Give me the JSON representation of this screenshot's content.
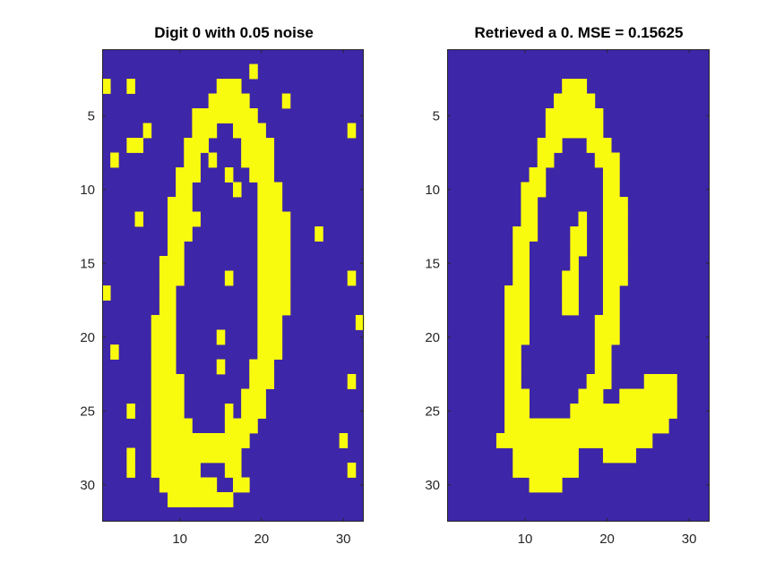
{
  "chart_data": [
    {
      "type": "heatmap",
      "title": "Digit 0 with 0.05 noise",
      "xlim": [
        0.5,
        32.5
      ],
      "ylim": [
        0.5,
        32.5
      ],
      "y_reversed": true,
      "xticks": [
        10,
        20,
        30
      ],
      "yticks": [
        5,
        10,
        15,
        20,
        25,
        30
      ],
      "colors": {
        "off": "#3e26a8",
        "on": "#f9fb0e",
        "axis": "#262626"
      },
      "values_note": "rows top to bottom, columns 1..32",
      "values": [
        "00000000000000000000000000000000",
        "00000000000000000010000000000000",
        "10010000000000111000000000000000",
        "00000000000001111100001000000000",
        "00000000000111111110000000000000",
        "00000100000111001111000000000010",
        "00011000001110000111100000000000",
        "01000000001101000111100000000000",
        "00000000011100010011100000000000",
        "00000000011000001001110000000000",
        "00000000111000000001110000000000",
        "00001000111100000001111000000000",
        "00000000111000000001111000100000",
        "00000000110000000001111000000000",
        "00000001110000000001111000000000",
        "00000001110000010001111000000010",
        "10000001100000000001111000000000",
        "00000001100000000001111000000000",
        "00000011100000000001110000000001",
        "00000011100000100001110000000000",
        "01000011100000000001110000000000",
        "00000011100000100011100000000000",
        "00000011110000000011100000000010",
        "00000011110000000111000000000000",
        "00010011110000010111000000000000",
        "00000011111000011110000000000000",
        "00000011111111111100000000000100",
        "00010011111111111000000000000000",
        "00010011111100011000000000000010",
        "00000001111111001100000000000000",
        "00000000111111110000000000000000",
        "00000000000000000000000000000000"
      ]
    },
    {
      "type": "heatmap",
      "title": "Retrieved a 0. MSE = 0.15625",
      "xlim": [
        0.5,
        32.5
      ],
      "ylim": [
        0.5,
        32.5
      ],
      "y_reversed": true,
      "xticks": [
        10,
        20,
        30
      ],
      "yticks": [
        5,
        10,
        15,
        20,
        25,
        30
      ],
      "colors": {
        "off": "#3e26a8",
        "on": "#f9fb0e",
        "axis": "#262626"
      },
      "values_note": "rows top to bottom, columns 1..32",
      "values": [
        "00000000000000000000000000000000",
        "00000000000000000000000000000000",
        "00000000000000111000000000000000",
        "00000000000001111100000000000000",
        "00000000000011111110000000000000",
        "00000000000011111110000000000000",
        "00000000000111000111000000000000",
        "00000000000110000011100000000000",
        "00000000001100000001100000000000",
        "00000000011100000001100000000000",
        "00000000011000000001110000000000",
        "00000000011000001001110000000000",
        "00000000111000011001110000000000",
        "00000000110000011001110000000000",
        "00000000110000010001110000000000",
        "00000000110000110001110000000000",
        "00000001110000110001100000000000",
        "00000001110000110001100000000000",
        "00000001110000000011100000000000",
        "00000001110000000011100000000000",
        "00000001100000000011000000000000",
        "00000001100000000011000000000000",
        "00000001100000000111000011110000",
        "00000001110000001110011111110000",
        "00000001110000011111111111110000",
        "00000001111111111111111111100000",
        "00000011111111111111111110000000",
        "00000000111111110001111000000000",
        "00000000111111110000000000000000",
        "00000000001111000000000000000000",
        "00000000000000000000000000000000",
        "00000000000000000000000000000000"
      ]
    }
  ]
}
